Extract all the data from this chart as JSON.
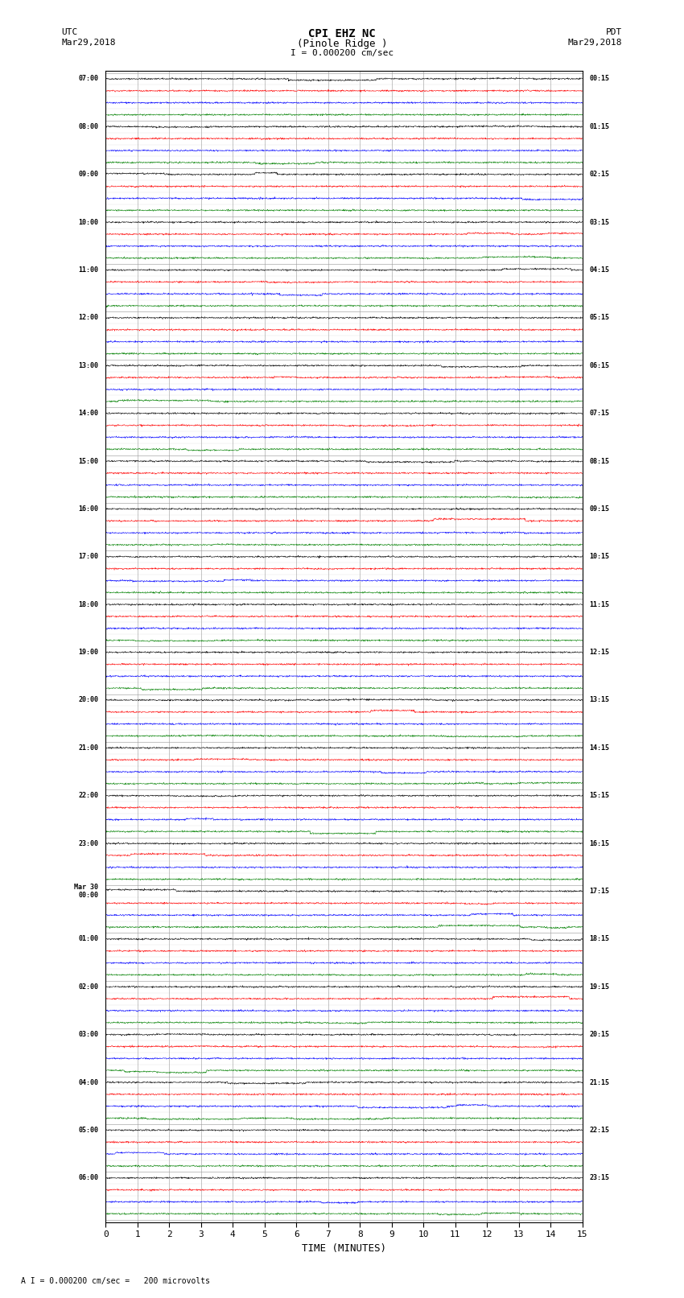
{
  "title_line1": "CPI EHZ NC",
  "title_line2": "(Pinole Ridge )",
  "scale_text": "I = 0.000200 cm/sec",
  "footer_text": "A I = 0.000200 cm/sec =   200 microvolts",
  "left_label_line1": "UTC",
  "left_label_line2": "Mar29,2018",
  "right_label_line1": "PDT",
  "right_label_line2": "Mar29,2018",
  "xlabel": "TIME (MINUTES)",
  "num_rows": 96,
  "colors": [
    "black",
    "red",
    "blue",
    "green"
  ],
  "bg_color": "white",
  "grid_color": "#999999",
  "left_time_labels": [
    "07:00",
    "",
    "",
    "",
    "08:00",
    "",
    "",
    "",
    "09:00",
    "",
    "",
    "",
    "10:00",
    "",
    "",
    "",
    "11:00",
    "",
    "",
    "",
    "12:00",
    "",
    "",
    "",
    "13:00",
    "",
    "",
    "",
    "14:00",
    "",
    "",
    "",
    "15:00",
    "",
    "",
    "",
    "16:00",
    "",
    "",
    "",
    "17:00",
    "",
    "",
    "",
    "18:00",
    "",
    "",
    "",
    "19:00",
    "",
    "",
    "",
    "20:00",
    "",
    "",
    "",
    "21:00",
    "",
    "",
    "",
    "22:00",
    "",
    "",
    "",
    "23:00",
    "",
    "",
    "",
    "Mar 30\n00:00",
    "",
    "",
    "",
    "01:00",
    "",
    "",
    "",
    "02:00",
    "",
    "",
    "",
    "03:00",
    "",
    "",
    "",
    "04:00",
    "",
    "",
    "",
    "05:00",
    "",
    "",
    "",
    "06:00",
    "",
    "",
    ""
  ],
  "right_time_labels": [
    "00:15",
    "",
    "",
    "",
    "01:15",
    "",
    "",
    "",
    "02:15",
    "",
    "",
    "",
    "03:15",
    "",
    "",
    "",
    "04:15",
    "",
    "",
    "",
    "05:15",
    "",
    "",
    "",
    "06:15",
    "",
    "",
    "",
    "07:15",
    "",
    "",
    "",
    "08:15",
    "",
    "",
    "",
    "09:15",
    "",
    "",
    "",
    "10:15",
    "",
    "",
    "",
    "11:15",
    "",
    "",
    "",
    "12:15",
    "",
    "",
    "",
    "13:15",
    "",
    "",
    "",
    "14:15",
    "",
    "",
    "",
    "15:15",
    "",
    "",
    "",
    "16:15",
    "",
    "",
    "",
    "17:15",
    "",
    "",
    "",
    "18:15",
    "",
    "",
    "",
    "19:15",
    "",
    "",
    "",
    "20:15",
    "",
    "",
    "",
    "21:15",
    "",
    "",
    "",
    "22:15",
    "",
    "",
    "",
    "23:15",
    "",
    "",
    ""
  ],
  "xmin": 0,
  "xmax": 15,
  "xticks": [
    0,
    1,
    2,
    3,
    4,
    5,
    6,
    7,
    8,
    9,
    10,
    11,
    12,
    13,
    14,
    15
  ],
  "noise_seed": 42,
  "noise_amplitude": 0.08,
  "trace_linewidth": 0.4
}
